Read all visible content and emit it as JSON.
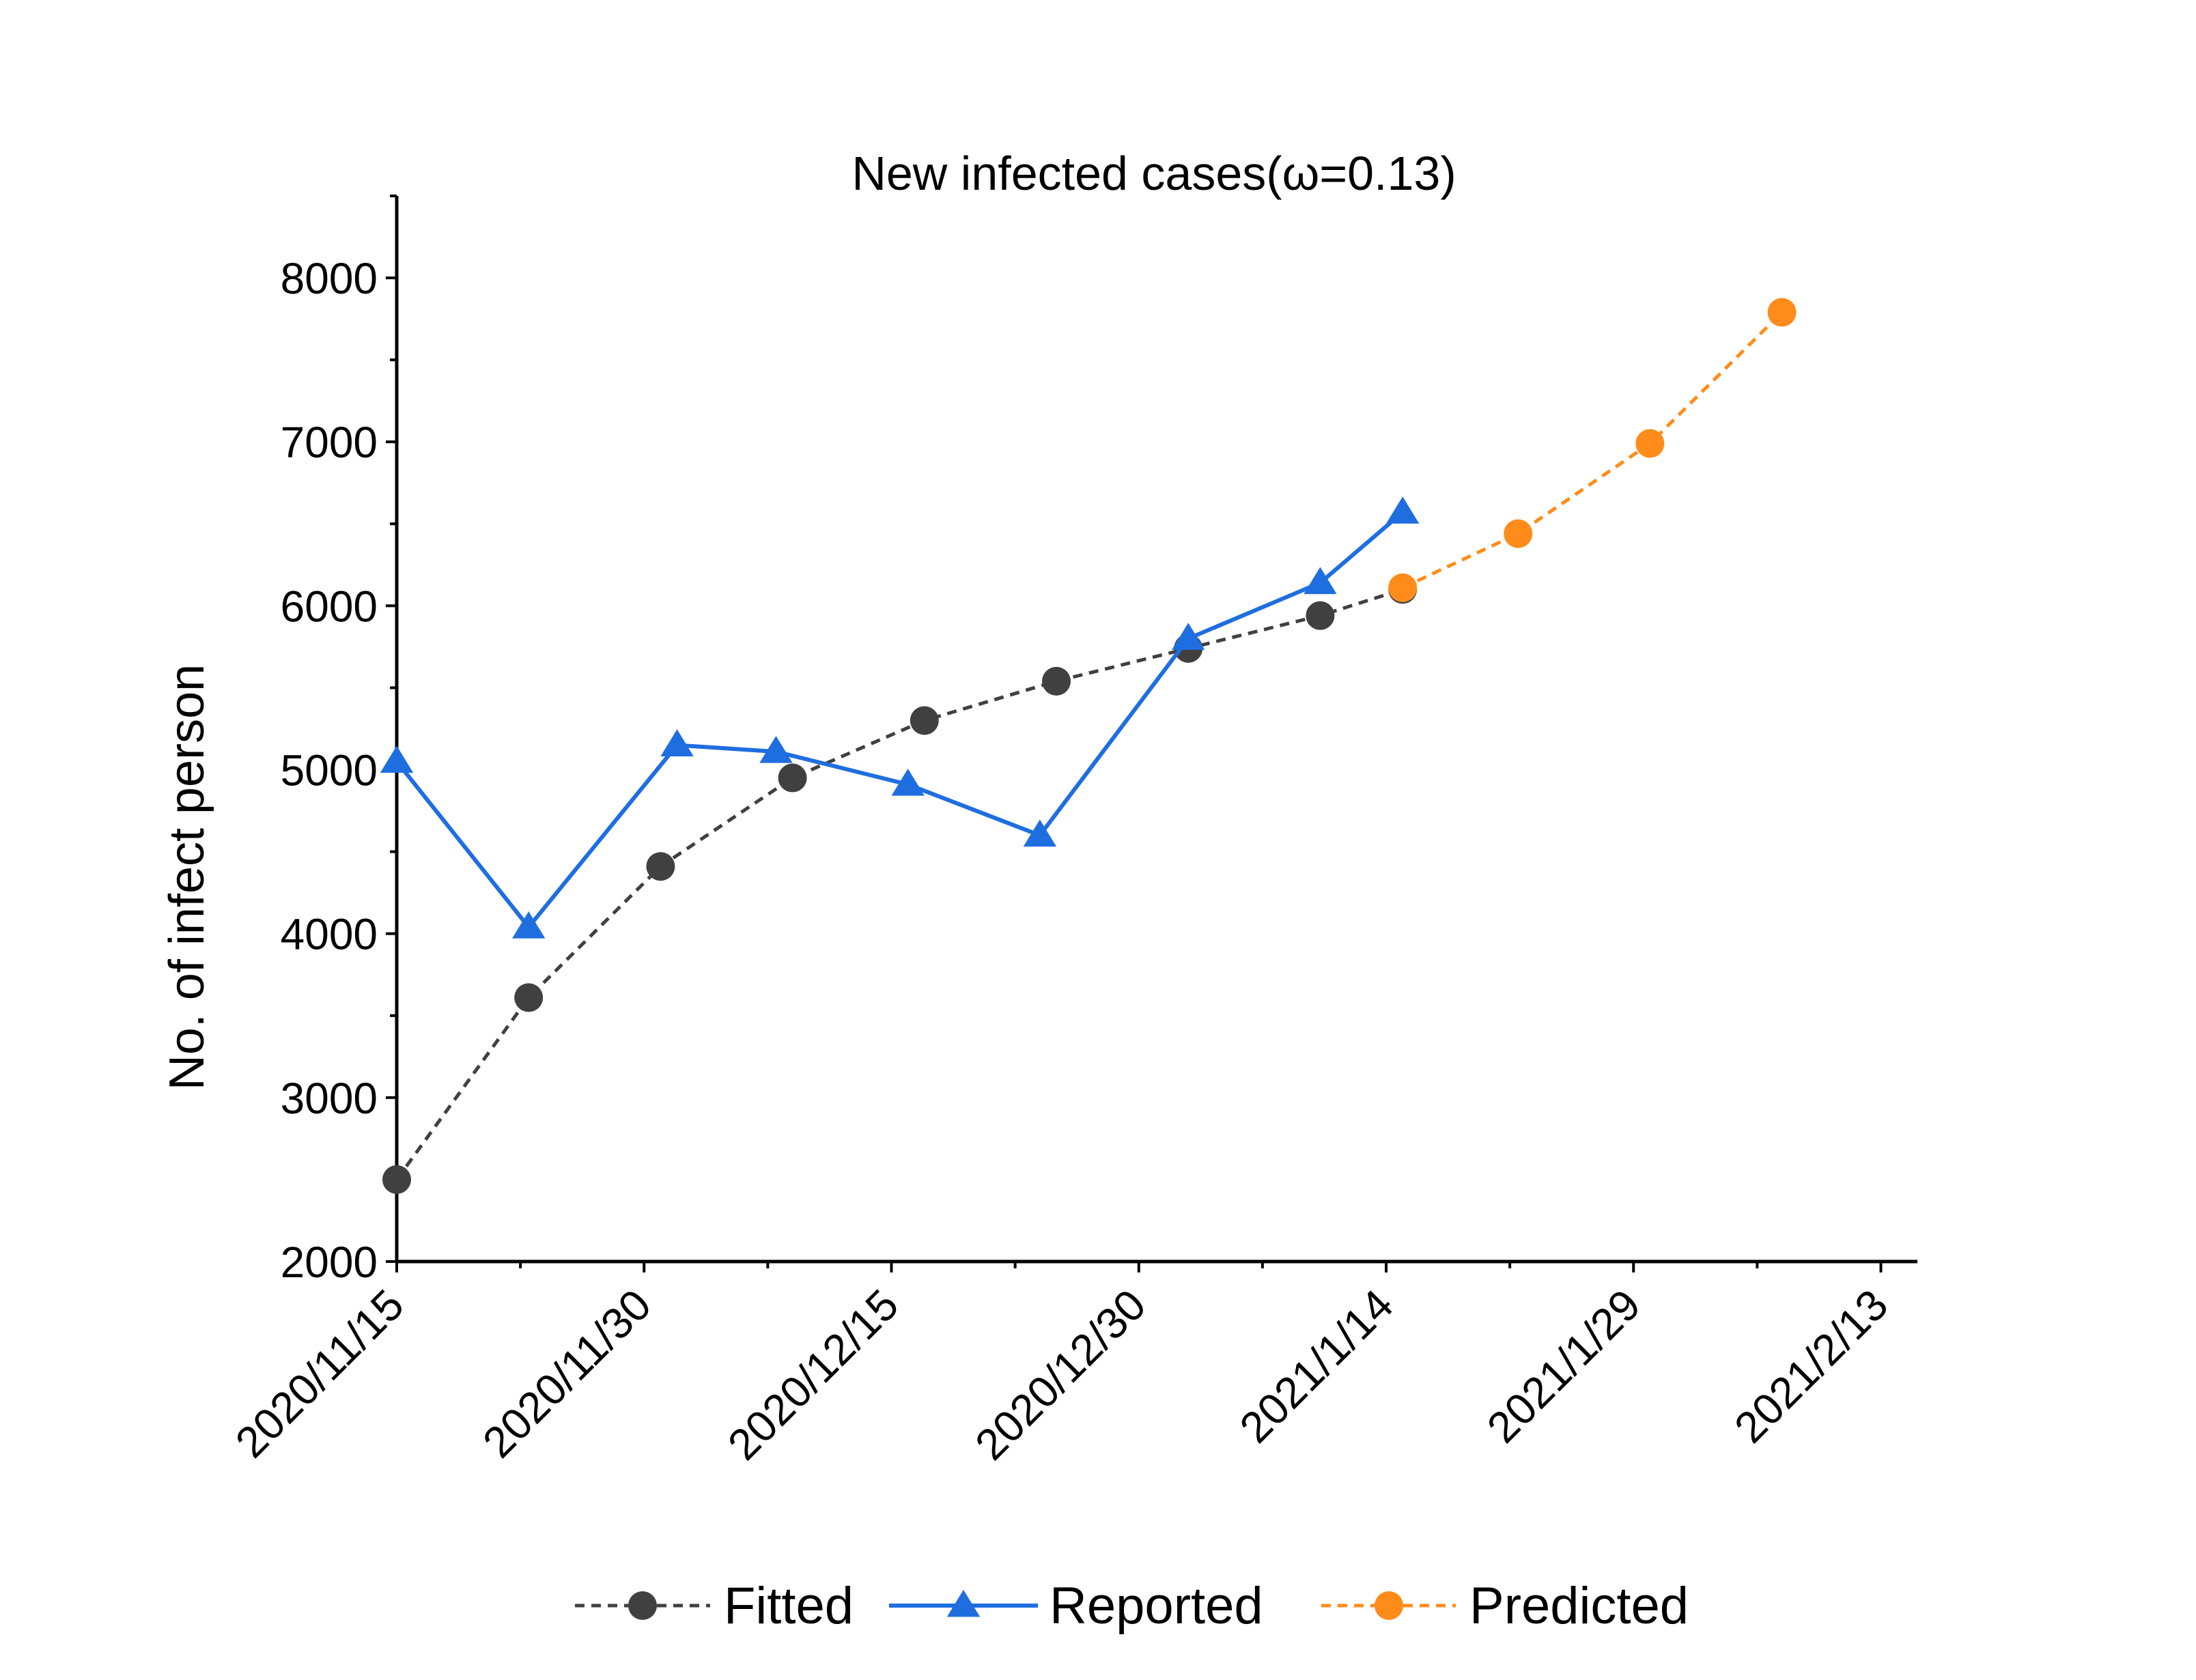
{
  "chart_data": {
    "type": "line",
    "title": "New infected cases(ω=0.13)",
    "xlabel": "",
    "ylabel": "No. of infect person",
    "x_type": "date",
    "xlim": [
      "2020-11-15",
      "2021-02-16"
    ],
    "ylim": [
      2000,
      8500
    ],
    "x_ticks": [
      "2020-11-15",
      "2020-11-30",
      "2020-12-15",
      "2020-12-30",
      "2021-01-14",
      "2021-01-29",
      "2021-02-13"
    ],
    "x_tick_labels": [
      "2020/11/15",
      "2020/11/30",
      "2020/12/15",
      "2020/12/30",
      "2021/1/14",
      "2021/1/29",
      "2021/2/13"
    ],
    "y_ticks": [
      2000,
      3000,
      4000,
      5000,
      6000,
      7000,
      8000
    ],
    "y_tick_labels": [
      "2000",
      "3000",
      "4000",
      "5000",
      "6000",
      "7000",
      "8000"
    ],
    "grid": false,
    "legend_position": "bottom",
    "series": [
      {
        "name": "Fitted",
        "line_style": "dashed",
        "marker": "circle",
        "color": "#404040",
        "x": [
          "2020-11-15",
          "2020-11-23",
          "2020-12-01",
          "2020-12-09",
          "2020-12-17",
          "2020-12-25",
          "2021-01-02",
          "2021-01-10",
          "2021-01-15"
        ],
        "values": [
          2500,
          3610,
          4410,
          4950,
          5300,
          5540,
          5740,
          5940,
          6100
        ]
      },
      {
        "name": "Reported",
        "line_style": "solid",
        "marker": "triangle",
        "color": "#1f6ee0",
        "x": [
          "2020-11-15",
          "2020-11-23",
          "2020-12-02",
          "2020-12-08",
          "2020-12-16",
          "2020-12-24",
          "2021-01-02",
          "2021-01-10",
          "2021-01-15"
        ],
        "values": [
          5050,
          4040,
          5150,
          5110,
          4910,
          4600,
          5800,
          6140,
          6570
        ]
      },
      {
        "name": "Predicted",
        "line_style": "dashed",
        "marker": "circle",
        "color": "#ff8c1a",
        "x": [
          "2021-01-15",
          "2021-01-22",
          "2021-01-30",
          "2021-02-07"
        ],
        "values": [
          6110,
          6440,
          6990,
          7790
        ]
      }
    ]
  }
}
